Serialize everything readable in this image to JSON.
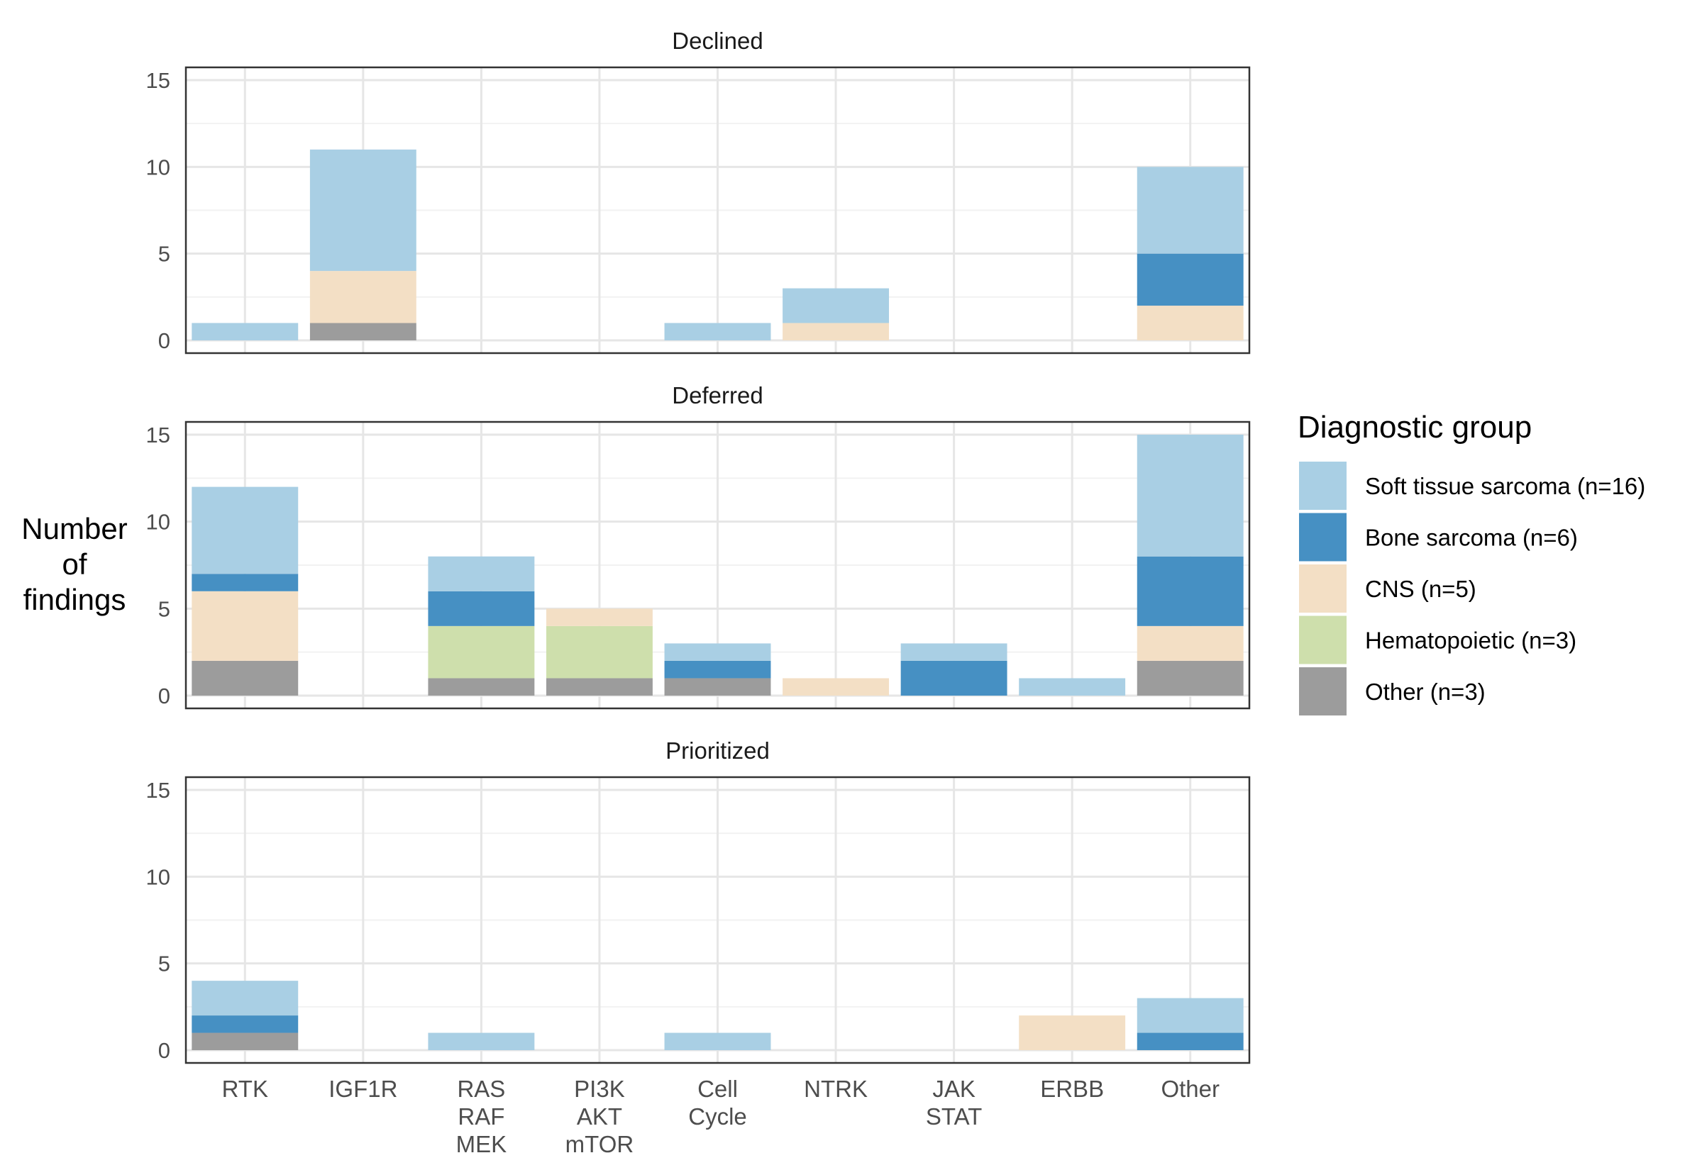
{
  "chart_data": {
    "type": "bar",
    "stacked": true,
    "facets": [
      "Declined",
      "Deferred",
      "Prioritized"
    ],
    "categories": [
      "RTK",
      "IGF1R",
      "RAS RAF MEK",
      "PI3K AKT mTOR",
      "Cell Cycle",
      "NTRK",
      "JAK STAT",
      "ERBB",
      "Other"
    ],
    "category_labels": [
      [
        "RTK"
      ],
      [
        "IGF1R"
      ],
      [
        "RAS",
        "RAF",
        "MEK"
      ],
      [
        "PI3K",
        "AKT",
        "mTOR"
      ],
      [
        "Cell",
        "Cycle"
      ],
      [
        "NTRK"
      ],
      [
        "JAK",
        "STAT"
      ],
      [
        "ERBB"
      ],
      [
        "Other"
      ]
    ],
    "ylabel": [
      "Number",
      "of",
      "findings"
    ],
    "ylim": [
      0,
      15
    ],
    "yticks": [
      0,
      5,
      10,
      15
    ],
    "grid": true,
    "legend": {
      "title": "Diagnostic group",
      "placement": "right",
      "entries": [
        "Soft tissue sarcoma (n=16)",
        "Bone sarcoma (n=6)",
        "CNS (n=5)",
        "Hematopoietic (n=3)",
        "Other (n=3)"
      ]
    },
    "stack_order_bottom_to_top": [
      "Other",
      "Hematopoietic",
      "CNS",
      "Bone sarcoma",
      "Soft tissue sarcoma"
    ],
    "colors": {
      "Soft tissue sarcoma": "#a9cfe4",
      "Bone sarcoma": "#4690c3",
      "CNS": "#f3dfc5",
      "Hematopoietic": "#cedfac",
      "Other": "#9c9c9c"
    },
    "series": [
      {
        "name": "Soft tissue sarcoma",
        "key": "Soft tissue sarcoma",
        "values": {
          "Declined": [
            1,
            7,
            0,
            0,
            1,
            2,
            0,
            0,
            5
          ],
          "Deferred": [
            5,
            0,
            2,
            0,
            1,
            0,
            1,
            1,
            7
          ],
          "Prioritized": [
            2,
            0,
            1,
            0,
            1,
            0,
            0,
            0,
            2
          ]
        }
      },
      {
        "name": "Bone sarcoma",
        "key": "Bone sarcoma",
        "values": {
          "Declined": [
            0,
            0,
            0,
            0,
            0,
            0,
            0,
            0,
            3
          ],
          "Deferred": [
            1,
            0,
            2,
            0,
            1,
            0,
            2,
            0,
            4
          ],
          "Prioritized": [
            1,
            0,
            0,
            0,
            0,
            0,
            0,
            0,
            1
          ]
        }
      },
      {
        "name": "CNS",
        "key": "CNS",
        "values": {
          "Declined": [
            0,
            3,
            0,
            0,
            0,
            1,
            0,
            0,
            2
          ],
          "Deferred": [
            4,
            0,
            0,
            1,
            0,
            1,
            0,
            0,
            2
          ],
          "Prioritized": [
            0,
            0,
            0,
            0,
            0,
            0,
            0,
            2,
            0
          ]
        }
      },
      {
        "name": "Hematopoietic",
        "key": "Hematopoietic",
        "values": {
          "Declined": [
            0,
            0,
            0,
            0,
            0,
            0,
            0,
            0,
            0
          ],
          "Deferred": [
            0,
            0,
            3,
            3,
            0,
            0,
            0,
            0,
            0
          ],
          "Prioritized": [
            0,
            0,
            0,
            0,
            0,
            0,
            0,
            0,
            0
          ]
        }
      },
      {
        "name": "Other",
        "key": "Other",
        "values": {
          "Declined": [
            0,
            1,
            0,
            0,
            0,
            0,
            0,
            0,
            0
          ],
          "Deferred": [
            2,
            0,
            1,
            1,
            1,
            0,
            0,
            0,
            2
          ],
          "Prioritized": [
            1,
            0,
            0,
            0,
            0,
            0,
            0,
            0,
            0
          ]
        }
      }
    ]
  }
}
